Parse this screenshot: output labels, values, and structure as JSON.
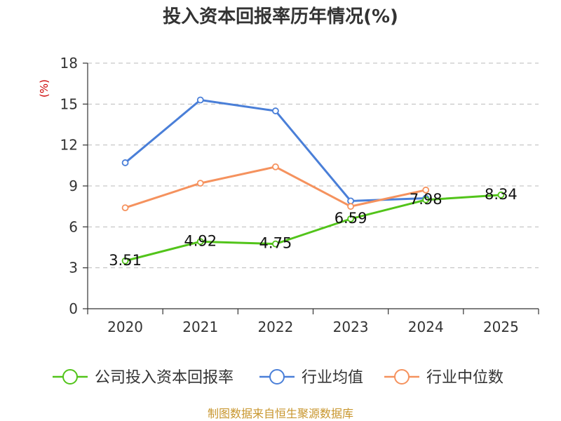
{
  "chart_data": {
    "type": "line",
    "title": "投入资本回报率历年情况(%)",
    "ylabel": "(%)",
    "xlabel": "",
    "categories": [
      "2020",
      "2021",
      "2022",
      "2023",
      "2024",
      "2025"
    ],
    "ylim": [
      0,
      18
    ],
    "yticks": [
      0,
      3,
      6,
      9,
      12,
      15,
      18
    ],
    "grid": true,
    "legend_position": "bottom",
    "series": [
      {
        "name": "公司投入资本回报率",
        "color": "#52c41a",
        "values": [
          3.51,
          4.92,
          4.75,
          6.59,
          7.98,
          8.34
        ],
        "show_labels": true
      },
      {
        "name": "行业均值",
        "color": "#4a7fd8",
        "values": [
          10.7,
          15.3,
          14.5,
          7.9,
          8.1,
          null
        ],
        "show_labels": false
      },
      {
        "name": "行业中位数",
        "color": "#f5925e",
        "values": [
          7.4,
          9.2,
          10.4,
          7.5,
          8.7,
          null
        ],
        "show_labels": false
      }
    ],
    "data_labels": [
      "3.51",
      "4.92",
      "4.75",
      "6.59",
      "7.98",
      "8.34"
    ],
    "source": "制图数据来自恒生聚源数据库"
  }
}
